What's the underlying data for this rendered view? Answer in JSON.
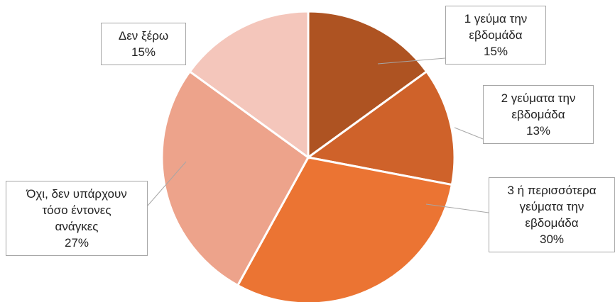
{
  "chart_data": {
    "type": "pie",
    "categories": [
      "1 γεύμα την\nεβδομάδα",
      "2 γεύματα την\nεβδομάδα",
      "3 ή περισσότερα\nγεύματα την\nεβδομάδα",
      "Όχι, δεν υπάρχουν\nτόσο έντονες\nανάγκες",
      "Δεν ξέρω"
    ],
    "values": [
      15,
      13,
      30,
      27,
      15
    ],
    "value_labels": [
      "15%",
      "13%",
      "30%",
      "27%",
      "15%"
    ],
    "colors": [
      "#ae5322",
      "#cf622a",
      "#eb7433",
      "#eda38b",
      "#f4c6bb"
    ]
  }
}
